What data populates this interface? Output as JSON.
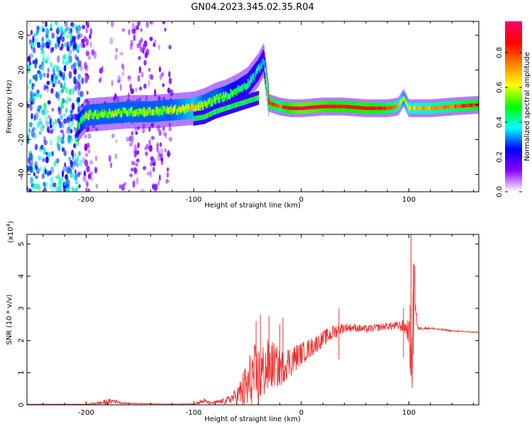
{
  "title": "GN04.2023.345.02.35.R04",
  "chart_data": [
    {
      "type": "heatmap",
      "xlabel": "Height of straight line (km)",
      "ylabel": "Frequency (Hz)",
      "xlim": [
        -255,
        165
      ],
      "ylim": [
        -50,
        48
      ],
      "xticks": [
        -200,
        -100,
        0,
        100
      ],
      "yticks": [
        -40,
        -20,
        0,
        20,
        40
      ],
      "colorbar": {
        "label": "Normalized spectral amplitude",
        "range": [
          0.0,
          0.98
        ],
        "ticks": [
          0.0,
          0.2,
          0.4,
          0.6,
          0.8
        ],
        "tick_labels": [
          "0.0",
          "0.2",
          "0.4",
          "0.6",
          "0.8"
        ],
        "colormap": [
          "#ffffff",
          "#8b00ff",
          "#0000ff",
          "#00ffff",
          "#00ff00",
          "#ffff00",
          "#ff8000",
          "#ff0000",
          "#ff0066"
        ]
      },
      "ridge": {
        "x": [
          -208,
          -200,
          -180,
          -160,
          -140,
          -120,
          -100,
          -90,
          -80,
          -70,
          -60,
          -50,
          -40,
          -35,
          -30,
          -20,
          -10,
          0,
          20,
          40,
          60,
          80,
          90,
          95,
          100,
          120,
          140,
          165
        ],
        "y": [
          -12,
          -6,
          -5,
          -4,
          -4,
          -3,
          -2,
          0,
          3,
          5,
          8,
          12,
          20,
          26,
          1,
          -1,
          -2,
          -2,
          -1,
          -1,
          -2,
          -2,
          -1,
          4,
          -2,
          -2,
          -1,
          0
        ],
        "level": [
          0.35,
          0.45,
          0.45,
          0.45,
          0.45,
          0.45,
          0.55,
          0.45,
          0.45,
          0.4,
          0.35,
          0.3,
          0.3,
          0.25,
          0.8,
          0.7,
          0.85,
          0.9,
          0.85,
          0.8,
          0.85,
          0.75,
          0.65,
          0.5,
          0.6,
          0.65,
          0.7,
          0.8
        ]
      },
      "lower_branch": {
        "x": [
          -100,
          -90,
          -80,
          -70,
          -60,
          -50,
          -40
        ],
        "y": [
          -8,
          -7,
          -4,
          -2,
          0,
          2,
          4
        ]
      },
      "noise_regions": [
        {
          "x": [
            -255,
            -205
          ],
          "density": 1.0,
          "level": 0.3
        },
        {
          "x": [
            -205,
            -195
          ],
          "density": 0.6,
          "level": 0.1
        },
        {
          "x": [
            -160,
            -120
          ],
          "density": 0.4,
          "level": 0.08
        },
        {
          "x": [
            -200,
            -160
          ],
          "density": 0.15,
          "level": 0.05
        }
      ]
    },
    {
      "type": "line",
      "xlabel": "Height of straight line (km)",
      "ylabel": "SNR (10 * v/v)",
      "y_multiplier": "(x10",
      "y_multiplier_exp": "4",
      "xlim": [
        -255,
        165
      ],
      "ylim": [
        0,
        5.3
      ],
      "xticks": [
        -200,
        -100,
        0,
        100
      ],
      "yticks": [
        0,
        1,
        2,
        3,
        4,
        5
      ],
      "series": [
        {
          "color": "#ee3333",
          "x": [
            -255,
            -200,
            -180,
            -175,
            -165,
            -120,
            -100,
            -90,
            -85,
            -70,
            -60,
            -50,
            -45,
            -40,
            -35,
            -30,
            -25,
            -20,
            -15,
            -10,
            0,
            10,
            20,
            30,
            35,
            40,
            50,
            60,
            70,
            80,
            90,
            95,
            100,
            102,
            103,
            104,
            105,
            106,
            108,
            120,
            140,
            165
          ],
          "y": [
            0.02,
            0.02,
            0.08,
            0.12,
            0.05,
            0.02,
            0.03,
            0.12,
            0.05,
            0.12,
            0.28,
            0.55,
            0.9,
            0.8,
            1.05,
            1.2,
            1.25,
            1.1,
            1.3,
            1.35,
            1.6,
            1.8,
            2.05,
            2.25,
            2.35,
            2.4,
            2.4,
            2.35,
            2.4,
            2.45,
            2.45,
            2.45,
            2.3,
            1.5,
            0.9,
            2.6,
            4.5,
            3.2,
            2.38,
            2.38,
            2.3,
            2.25
          ],
          "noise": [
            0.0,
            0.0,
            0.1,
            0.08,
            0.02,
            0.0,
            0.03,
            0.08,
            0.04,
            0.1,
            0.25,
            0.9,
            1.0,
            1.1,
            0.9,
            0.9,
            0.7,
            0.6,
            0.55,
            0.5,
            0.35,
            0.3,
            0.25,
            0.25,
            0.2,
            0.15,
            0.12,
            0.12,
            0.12,
            0.12,
            0.15,
            0.2,
            0.4,
            0.8,
            1.2,
            1.5,
            0.9,
            0.6,
            0.05,
            0.03,
            0.02,
            0.02
          ],
          "spikes": [
            {
              "x": -42,
              "y": 2.6
            },
            {
              "x": -38,
              "y": 2.8
            },
            {
              "x": -30,
              "y": 2.75
            },
            {
              "x": -20,
              "y": 2.5
            },
            {
              "x": -17,
              "y": 2.7
            },
            {
              "x": 35,
              "y": 3.0
            },
            {
              "x": 95,
              "y": 3.0
            },
            {
              "x": 101,
              "y": 3.1
            },
            {
              "x": 102,
              "y": 5.3
            },
            {
              "x": 104,
              "y": 4.4
            }
          ]
        }
      ]
    }
  ]
}
